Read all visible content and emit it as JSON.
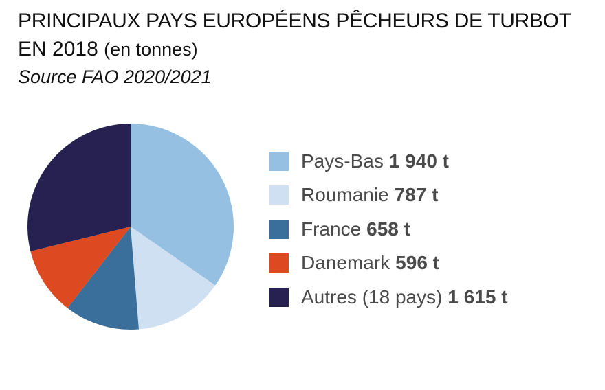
{
  "title": {
    "line1": "PRINCIPAUX PAYS EUROPÉENS PÊCHEURS DE TURBOT",
    "line2": "EN 2018",
    "unit": "(en tonnes)",
    "source": "Source FAO 2020/2021"
  },
  "chart_data": {
    "type": "pie",
    "title": "PRINCIPAUX PAYS EUROPÉENS PÊCHEURS DE TURBOT EN 2018 (en tonnes)",
    "subtitle": "Source FAO 2020/2021",
    "unit": "t",
    "legend_position": "right",
    "start_angle": "top",
    "direction": "clockwise",
    "slices": [
      {
        "label": "Pays-Bas",
        "value": 1940,
        "value_label": "1 940 t",
        "color": "#95c0e2"
      },
      {
        "label": "Roumanie",
        "value": 787,
        "value_label": "787 t",
        "color": "#cfe0f3"
      },
      {
        "label": "France",
        "value": 658,
        "value_label": "658 t",
        "color": "#3a6f9b"
      },
      {
        "label": "Danemark",
        "value": 596,
        "value_label": "596 t",
        "color": "#dd4a21"
      },
      {
        "label": "Autres (18 pays)",
        "value": 1615,
        "value_label": "1 615 t",
        "color": "#262150"
      }
    ]
  }
}
